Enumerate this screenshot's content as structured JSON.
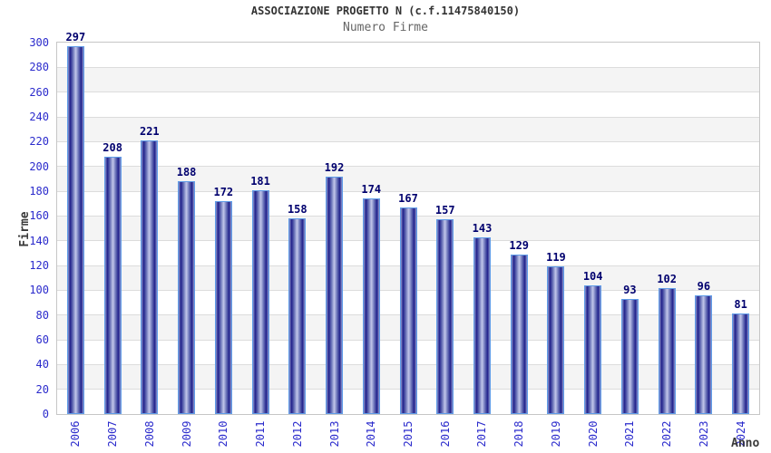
{
  "header": {
    "title": "ASSOCIAZIONE PROGETTO N (c.f.11475840150)",
    "subtitle": "Numero Firme"
  },
  "chart_data": {
    "type": "bar",
    "title": "ASSOCIAZIONE PROGETTO N (c.f.11475840150)",
    "subtitle": "Numero Firme",
    "xlabel": "Anno",
    "ylabel": "Firme",
    "categories": [
      "2006",
      "2007",
      "2008",
      "2009",
      "2010",
      "2011",
      "2012",
      "2013",
      "2014",
      "2015",
      "2016",
      "2017",
      "2018",
      "2019",
      "2020",
      "2021",
      "2022",
      "2023",
      "2024"
    ],
    "values": [
      297,
      208,
      221,
      188,
      172,
      181,
      158,
      192,
      174,
      167,
      157,
      143,
      129,
      119,
      104,
      93,
      102,
      96,
      81
    ],
    "ylim": [
      0,
      300
    ],
    "ytick_step": 20,
    "grid": true,
    "legend": "none",
    "band_colors": [
      "#ffffff",
      "#f4f4f4"
    ],
    "gridline_color": "#dcdcdc",
    "bar_dark_color": "#20208a",
    "bar_light_color": "#c2c7ea",
    "bar_outline_color": "#5f9ce8",
    "value_label_color": "#00006e",
    "axis_tick_color": "#2b2bcc",
    "axis_title_color": "#3a3a3a"
  }
}
